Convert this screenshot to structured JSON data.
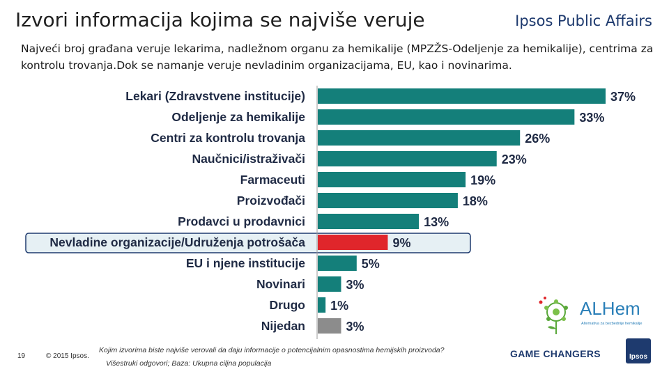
{
  "header": {
    "title": "Izvori informacija kojima se najviše veruje",
    "brand": "Ipsos Public Affairs",
    "subtitle": "Najveći broj građana veruje lekarima, nadležnom organu za hemikalije (MPZŽS-Odeljenje za hemikalije), centrima za kontrolu trovanja.Dok se namanje veruje nevladinim organizacijama, EU, kao i novinarima."
  },
  "colors": {
    "teal": "#147f7a",
    "highlight": "#e0262b",
    "grey": "#8c8c8c",
    "highlight_box_bg": "#e6f0f4",
    "highlight_box_border": "#1e3a6e"
  },
  "chart_data": {
    "type": "bar",
    "orientation": "horizontal",
    "title": "",
    "categories": [
      "Lekari (Zdravstvene institucije)",
      "Odeljenje za hemikalije",
      "Centri za kontrolu trovanja",
      "Naučnici/istraživači",
      "Farmaceuti",
      "Proizvođači",
      "Prodavci u prodavnici",
      "Nevladine organizacije/Udruženja potrošača",
      "EU i njene institucije",
      "Novinari",
      "Drugo",
      "Nijedan"
    ],
    "values": [
      37,
      33,
      26,
      23,
      19,
      18,
      13,
      9,
      5,
      3,
      1,
      3
    ],
    "value_labels": [
      "37%",
      "33%",
      "26%",
      "23%",
      "19%",
      "18%",
      "13%",
      "9%",
      "5%",
      "3%",
      "1%",
      "3%"
    ],
    "bar_colors": [
      "teal",
      "teal",
      "teal",
      "teal",
      "teal",
      "teal",
      "teal",
      "highlight",
      "teal",
      "teal",
      "teal",
      "grey"
    ],
    "highlighted_index": 7,
    "xlim": [
      0,
      37
    ],
    "unit": "%"
  },
  "logos": {
    "alhem": "ALHem",
    "alhem_sub": "Alternativa za bezbednije hemikalije",
    "game_changers": "GAME CHANGERS",
    "ipsos_badge": "Ipsos"
  },
  "footer": {
    "page_number": "19",
    "copyright": "© 2015 Ipsos.",
    "question": "Kojim izvorima biste najviše verovali da daju informacije o potencijalnim opasnostima hemijskih proizvoda?",
    "note": "Višestruki odgovori; Baza: Ukupna ciljna populacija"
  }
}
